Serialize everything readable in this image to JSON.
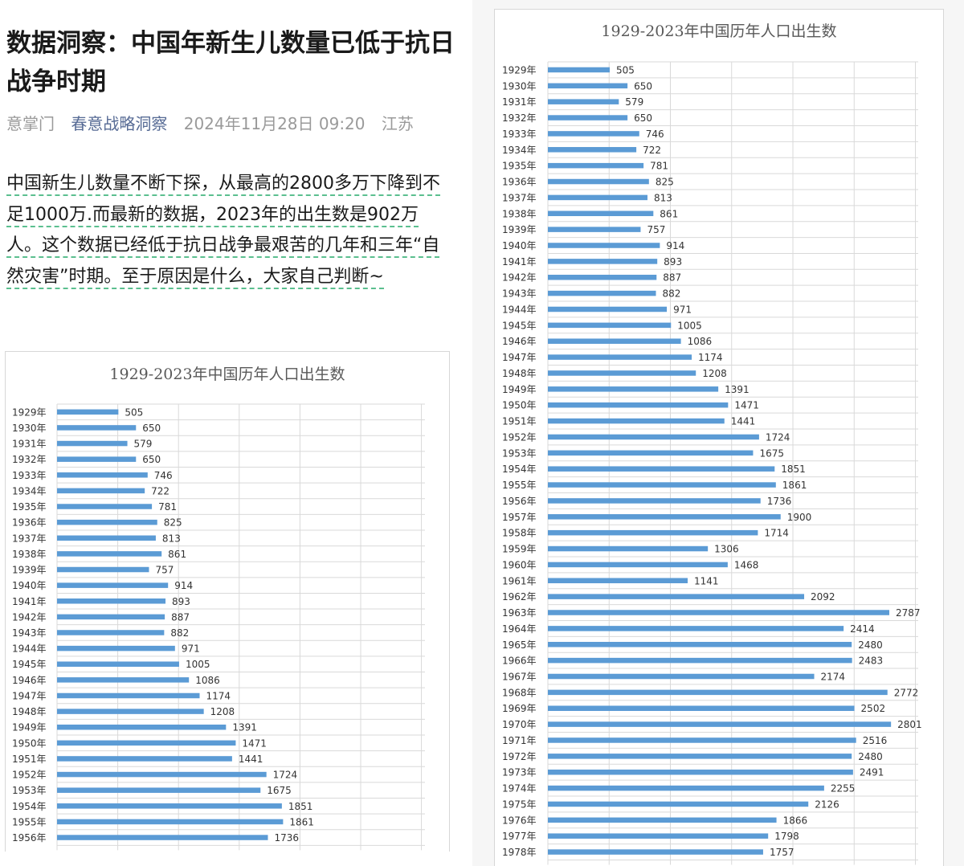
{
  "article": {
    "title": "数据洞察：中国年新生儿数量已低于抗日战争时期",
    "author": "意掌门",
    "account": "春意战略洞察",
    "datetime": "2024年11月28日 09:20",
    "location": "江苏",
    "paragraph": "中国新生儿数量不断下探，从最高的2800多万下降到不足1000万.而最新的数据，2023年的出生数是902万人。这个数据已经低于抗日战争最艰苦的几年和三年“自然灾害”时期。至于原因是什么，大家自己判断~"
  },
  "colors": {
    "bar": "#5b9bd5",
    "grid": "#d9d9d9",
    "account_link": "#576b95",
    "underline": "#5bbf8f"
  },
  "chart_data": [
    {
      "type": "bar",
      "orientation": "horizontal",
      "title": "1929-2023年中国历年人口出生数",
      "grid": true,
      "categories": [
        "1929年",
        "1930年",
        "1931年",
        "1932年",
        "1933年",
        "1934年",
        "1935年",
        "1936年",
        "1937年",
        "1938年",
        "1939年",
        "1940年",
        "1941年",
        "1942年",
        "1943年",
        "1944年",
        "1945年",
        "1946年",
        "1947年",
        "1948年",
        "1949年",
        "1950年",
        "1951年",
        "1952年",
        "1953年",
        "1954年",
        "1955年",
        "1956年"
      ],
      "values": [
        505,
        650,
        579,
        650,
        746,
        722,
        781,
        825,
        813,
        861,
        757,
        914,
        893,
        887,
        882,
        971,
        1005,
        1086,
        1174,
        1208,
        1391,
        1471,
        1441,
        1724,
        1675,
        1851,
        1861,
        1736
      ]
    },
    {
      "type": "bar",
      "orientation": "horizontal",
      "title": "1929-2023年中国历年人口出生数",
      "grid": true,
      "categories": [
        "1929年",
        "1930年",
        "1931年",
        "1932年",
        "1933年",
        "1934年",
        "1935年",
        "1936年",
        "1937年",
        "1938年",
        "1939年",
        "1940年",
        "1941年",
        "1942年",
        "1943年",
        "1944年",
        "1945年",
        "1946年",
        "1947年",
        "1948年",
        "1949年",
        "1950年",
        "1951年",
        "1952年",
        "1953年",
        "1954年",
        "1955年",
        "1956年",
        "1957年",
        "1958年",
        "1959年",
        "1960年",
        "1961年",
        "1962年",
        "1963年",
        "1964年",
        "1965年",
        "1966年",
        "1967年",
        "1968年",
        "1969年",
        "1970年",
        "1971年",
        "1972年",
        "1973年",
        "1974年",
        "1975年",
        "1976年",
        "1977年",
        "1978年"
      ],
      "values": [
        505,
        650,
        579,
        650,
        746,
        722,
        781,
        825,
        813,
        861,
        757,
        914,
        893,
        887,
        882,
        971,
        1005,
        1086,
        1174,
        1208,
        1391,
        1471,
        1441,
        1724,
        1675,
        1851,
        1861,
        1736,
        1900,
        1714,
        1306,
        1468,
        1141,
        2092,
        2787,
        2414,
        2480,
        2483,
        2174,
        2772,
        2502,
        2801,
        2516,
        2480,
        2491,
        2255,
        2126,
        1866,
        1798,
        1757
      ]
    }
  ]
}
